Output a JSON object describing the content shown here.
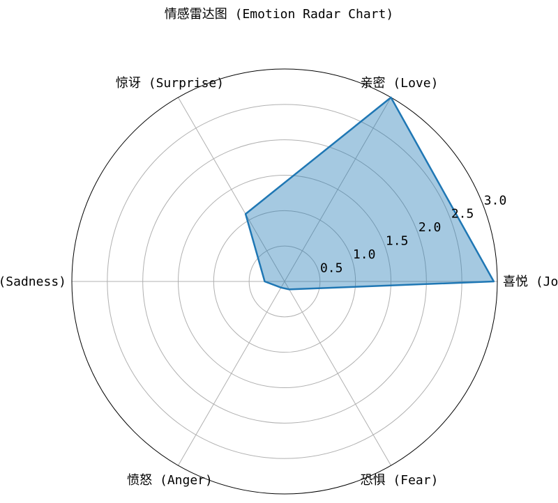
{
  "chart_data": {
    "type": "radar",
    "title": "情感雷达图 (Emotion Radar Chart)",
    "categories": [
      "喜悦 (Joy)",
      "亲密 (Love)",
      "惊讶 (Surprise)",
      "悲伤 (Sadness)",
      "愤怒 (Anger)",
      "恐惧 (Fear)"
    ],
    "series": [
      {
        "values": [
          2.95,
          3.0,
          1.1,
          0.28,
          0.1,
          0.13
        ]
      }
    ],
    "r_ticks": [
      "0.5",
      "1.0",
      "1.5",
      "2.0",
      "2.5",
      "3.0"
    ],
    "r_tick_values": [
      0.5,
      1.0,
      1.5,
      2.0,
      2.5,
      3.0
    ],
    "rlim": [
      0,
      3.0
    ],
    "grid": true,
    "colors": {
      "line": "#1f77b4",
      "fill": "#1f77b4",
      "grid": "#b0b0b0",
      "frame": "#000000"
    }
  }
}
